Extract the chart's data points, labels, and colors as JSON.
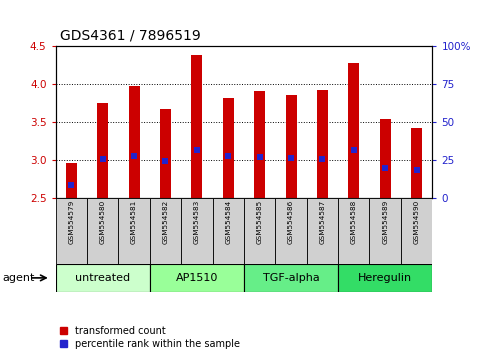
{
  "title": "GDS4361 / 7896519",
  "samples": [
    "GSM554579",
    "GSM554580",
    "GSM554581",
    "GSM554582",
    "GSM554583",
    "GSM554584",
    "GSM554585",
    "GSM554586",
    "GSM554587",
    "GSM554588",
    "GSM554589",
    "GSM554590"
  ],
  "bar_tops": [
    2.96,
    3.75,
    3.97,
    3.67,
    4.38,
    3.82,
    3.91,
    3.85,
    3.92,
    4.28,
    3.54,
    3.42
  ],
  "bar_bottom": 2.5,
  "percentile_values": [
    2.67,
    3.01,
    3.06,
    2.99,
    3.14,
    3.06,
    3.04,
    3.03,
    3.02,
    3.13,
    2.9,
    2.87
  ],
  "bar_color": "#cc0000",
  "percentile_color": "#2222cc",
  "ylim_left": [
    2.5,
    4.5
  ],
  "ylim_right": [
    0,
    100
  ],
  "yticks_left": [
    2.5,
    3.0,
    3.5,
    4.0,
    4.5
  ],
  "yticks_right": [
    0,
    25,
    50,
    75,
    100
  ],
  "ytick_labels_right": [
    "0",
    "25",
    "50",
    "75",
    "100%"
  ],
  "groups": [
    {
      "label": "untreated",
      "start": 0,
      "end": 2
    },
    {
      "label": "AP1510",
      "start": 3,
      "end": 5
    },
    {
      "label": "TGF-alpha",
      "start": 6,
      "end": 8
    },
    {
      "label": "Heregulin",
      "start": 9,
      "end": 11
    }
  ],
  "group_colors": [
    "#ccffcc",
    "#99ff99",
    "#66ee88",
    "#33dd66"
  ],
  "legend_items": [
    {
      "label": "transformed count",
      "color": "#cc0000"
    },
    {
      "label": "percentile rank within the sample",
      "color": "#2222cc"
    }
  ],
  "tick_color_left": "#cc0000",
  "tick_color_right": "#2222cc",
  "bar_width": 0.35,
  "sample_bg_color": "#d0d0d0",
  "agent_label": "agent"
}
